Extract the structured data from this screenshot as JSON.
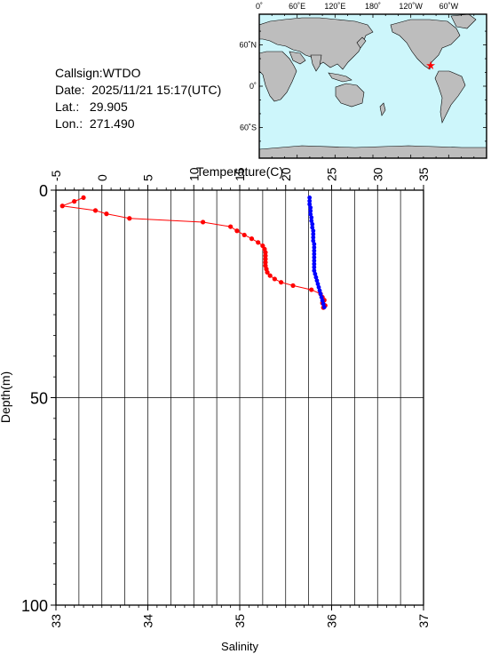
{
  "info": {
    "callsign": "Callsign:WTDO",
    "date_label": "Date:",
    "date_value": "2025/11/21 15:17(UTC)",
    "lat_label": "Lat.:",
    "lat_value": "29.905",
    "lon_label": "Lon.:",
    "lon_value": "271.490"
  },
  "map": {
    "lon_ticks": [
      "0˚",
      "60˚E",
      "120˚E",
      "180˚",
      "120˚W",
      "60˚W"
    ],
    "lat_ticks": [
      "60˚N",
      "0˚",
      "60˚S"
    ],
    "station_lat": 29.905,
    "station_lon": 271.49,
    "ocean_color": "#cdf6fb",
    "land_color": "#bdbdbd",
    "marker_color": "#ff0000"
  },
  "chart_data": {
    "type": "line",
    "top_axis": {
      "label": "Temperature(C)",
      "range": [
        -5,
        35
      ],
      "ticks": [
        "-5",
        "0",
        "5",
        "10",
        "15",
        "20",
        "25",
        "30",
        "35"
      ]
    },
    "bottom_axis": {
      "label": "Salinity",
      "range": [
        33,
        37
      ],
      "ticks": [
        "33",
        "34",
        "35",
        "36",
        "37"
      ]
    },
    "y_axis": {
      "label": "Depth(m)",
      "range": [
        0,
        100
      ],
      "inverted": true,
      "ticks": [
        "0",
        "50",
        "100"
      ]
    },
    "grid": true,
    "series": [
      {
        "quantity": "temperature",
        "color": "#ff0000",
        "points": [
          {
            "x": -2.0,
            "y": 1.8
          },
          {
            "x": -3.0,
            "y": 2.7
          },
          {
            "x": -4.3,
            "y": 3.8
          },
          {
            "x": -0.7,
            "y": 4.9
          },
          {
            "x": 0.5,
            "y": 5.7
          },
          {
            "x": 3.0,
            "y": 6.8
          },
          {
            "x": 11.0,
            "y": 7.7
          },
          {
            "x": 14.0,
            "y": 8.8
          },
          {
            "x": 14.7,
            "y": 9.8
          },
          {
            "x": 15.5,
            "y": 10.8
          },
          {
            "x": 16.3,
            "y": 11.7
          },
          {
            "x": 17.0,
            "y": 12.6
          },
          {
            "x": 17.5,
            "y": 13.4
          },
          {
            "x": 17.7,
            "y": 14.2
          },
          {
            "x": 17.8,
            "y": 15.0
          },
          {
            "x": 17.8,
            "y": 15.8
          },
          {
            "x": 17.8,
            "y": 16.6
          },
          {
            "x": 17.8,
            "y": 17.4
          },
          {
            "x": 17.8,
            "y": 18.2
          },
          {
            "x": 17.9,
            "y": 19.0
          },
          {
            "x": 18.0,
            "y": 19.8
          },
          {
            "x": 18.3,
            "y": 20.6
          },
          {
            "x": 18.8,
            "y": 21.4
          },
          {
            "x": 19.5,
            "y": 22.2
          },
          {
            "x": 20.8,
            "y": 23.0
          },
          {
            "x": 22.8,
            "y": 24.0
          },
          {
            "x": 23.8,
            "y": 25.0
          },
          {
            "x": 24.0,
            "y": 25.8
          },
          {
            "x": 24.2,
            "y": 26.5
          },
          {
            "x": 24.0,
            "y": 27.2
          },
          {
            "x": 24.3,
            "y": 27.8
          },
          {
            "x": 24.1,
            "y": 28.3
          }
        ]
      },
      {
        "quantity": "salinity",
        "color": "#0000ff",
        "points": [
          {
            "x": 35.76,
            "y": 1.8
          },
          {
            "x": 35.76,
            "y": 2.6
          },
          {
            "x": 35.76,
            "y": 3.4
          },
          {
            "x": 35.77,
            "y": 4.2
          },
          {
            "x": 35.77,
            "y": 5.0
          },
          {
            "x": 35.77,
            "y": 5.8
          },
          {
            "x": 35.78,
            "y": 6.6
          },
          {
            "x": 35.78,
            "y": 7.4
          },
          {
            "x": 35.79,
            "y": 8.2
          },
          {
            "x": 35.79,
            "y": 9.0
          },
          {
            "x": 35.8,
            "y": 9.8
          },
          {
            "x": 35.8,
            "y": 10.6
          },
          {
            "x": 35.8,
            "y": 11.4
          },
          {
            "x": 35.8,
            "y": 12.2
          },
          {
            "x": 35.81,
            "y": 13.0
          },
          {
            "x": 35.81,
            "y": 13.8
          },
          {
            "x": 35.81,
            "y": 14.6
          },
          {
            "x": 35.81,
            "y": 15.4
          },
          {
            "x": 35.81,
            "y": 16.2
          },
          {
            "x": 35.81,
            "y": 17.0
          },
          {
            "x": 35.81,
            "y": 17.8
          },
          {
            "x": 35.81,
            "y": 18.6
          },
          {
            "x": 35.81,
            "y": 19.4
          },
          {
            "x": 35.82,
            "y": 20.2
          },
          {
            "x": 35.83,
            "y": 21.0
          },
          {
            "x": 35.84,
            "y": 21.8
          },
          {
            "x": 35.85,
            "y": 22.6
          },
          {
            "x": 35.86,
            "y": 23.4
          },
          {
            "x": 35.87,
            "y": 24.2
          },
          {
            "x": 35.88,
            "y": 25.0
          },
          {
            "x": 35.89,
            "y": 25.8
          },
          {
            "x": 35.9,
            "y": 26.6
          },
          {
            "x": 35.91,
            "y": 27.4
          },
          {
            "x": 35.92,
            "y": 28.2
          }
        ]
      }
    ]
  }
}
